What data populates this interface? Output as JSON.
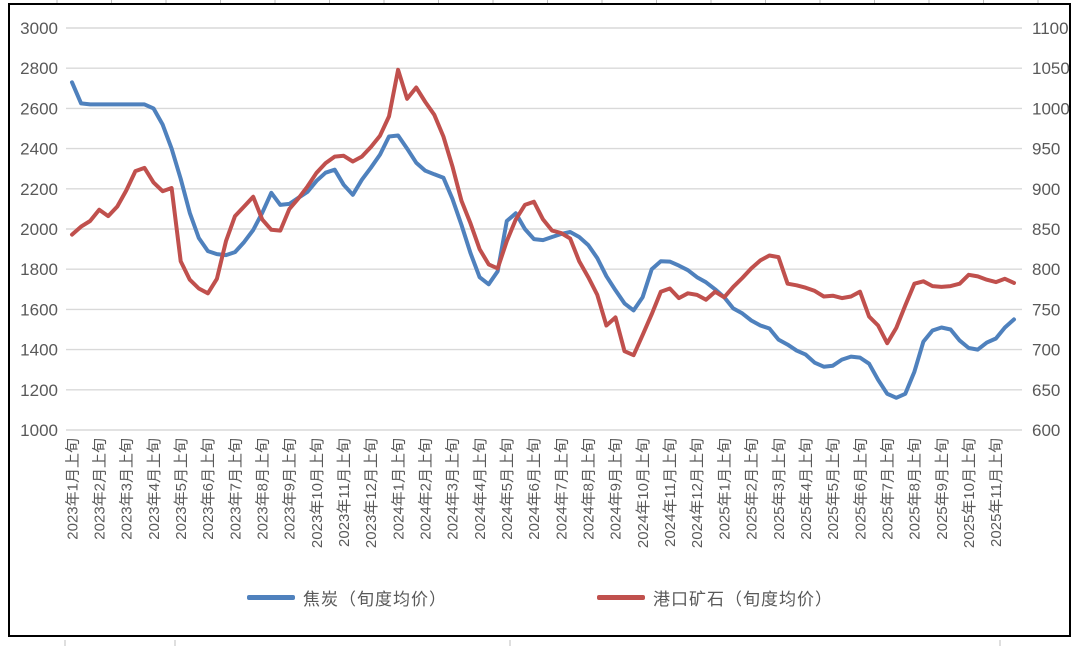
{
  "chart_data": {
    "type": "line",
    "title": "",
    "grid": "horizontal",
    "legend_position": "bottom",
    "points_per_month": 3,
    "x_tick_labels": [
      "2023年1月上旬",
      "2023年2月上旬",
      "2023年3月上旬",
      "2023年4月上旬",
      "2023年5月上旬",
      "2023年6月上旬",
      "2023年7月上旬",
      "2023年8月上旬",
      "2023年9月上旬",
      "2023年10月上旬",
      "2023年11月上旬",
      "2023年12月上旬",
      "2024年1月上旬",
      "2024年2月上旬",
      "2024年3月上旬",
      "2024年4月上旬",
      "2024年5月上旬",
      "2024年6月上旬",
      "2024年7月上旬",
      "2024年8月上旬",
      "2024年9月上旬",
      "2024年10月上旬",
      "2024年11月上旬",
      "2024年12月上旬",
      "2025年1月上旬",
      "2025年2月上旬",
      "2025年3月上旬",
      "2025年4月上旬",
      "2025年5月上旬",
      "2025年6月上旬",
      "2025年7月上旬",
      "2025年8月上旬",
      "2025年9月上旬",
      "2025年10月上旬",
      "2025年11月上旬"
    ],
    "left_axis": {
      "min": 1000,
      "max": 3000,
      "step": 200,
      "ticks": [
        3000,
        2800,
        2600,
        2400,
        2200,
        2000,
        1800,
        1600,
        1400,
        1200,
        1000
      ]
    },
    "right_axis": {
      "min": 600,
      "max": 1100,
      "step": 50,
      "ticks": [
        1100,
        1050,
        1000,
        950,
        900,
        850,
        800,
        750,
        700,
        650,
        600
      ]
    },
    "series": [
      {
        "name": "焦炭（旬度均价）",
        "axis": "left",
        "color": "#4F81BD",
        "values": [
          2730,
          2625,
          2620,
          2620,
          2620,
          2620,
          2620,
          2620,
          2620,
          2600,
          2520,
          2400,
          2250,
          2080,
          1955,
          1890,
          1875,
          1870,
          1885,
          1935,
          1995,
          2080,
          2180,
          2120,
          2125,
          2155,
          2185,
          2240,
          2280,
          2295,
          2220,
          2170,
          2245,
          2305,
          2370,
          2460,
          2465,
          2400,
          2330,
          2290,
          2272,
          2255,
          2150,
          2020,
          1880,
          1760,
          1725,
          1790,
          2040,
          2078,
          2000,
          1950,
          1945,
          1960,
          1975,
          1985,
          1960,
          1920,
          1855,
          1765,
          1695,
          1630,
          1595,
          1660,
          1800,
          1840,
          1838,
          1818,
          1795,
          1760,
          1735,
          1700,
          1660,
          1605,
          1580,
          1545,
          1520,
          1505,
          1450,
          1425,
          1395,
          1375,
          1335,
          1315,
          1320,
          1350,
          1365,
          1360,
          1330,
          1250,
          1180,
          1160,
          1180,
          1290,
          1440,
          1495,
          1510,
          1500,
          1445,
          1408,
          1400,
          1435,
          1455,
          1510,
          1550
        ]
      },
      {
        "name": "港口矿石（旬度均价）",
        "axis": "right",
        "color": "#C0504D",
        "values": [
          843,
          853,
          860,
          874,
          866,
          878,
          898,
          922,
          926,
          908,
          897,
          901,
          810,
          787,
          776,
          770,
          788,
          835,
          866,
          878,
          890,
          862,
          849,
          848,
          875,
          888,
          903,
          920,
          932,
          940,
          941,
          934,
          940,
          952,
          966,
          990,
          1048,
          1012,
          1026,
          1008,
          992,
          965,
          928,
          885,
          857,
          825,
          806,
          801,
          835,
          862,
          880,
          884,
          862,
          848,
          845,
          838,
          810,
          790,
          768,
          730,
          740,
          698,
          693,
          718,
          744,
          772,
          776,
          764,
          770,
          768,
          762,
          772,
          765,
          778,
          789,
          801,
          811,
          817,
          815,
          782,
          780,
          777,
          773,
          766,
          767,
          764,
          766,
          772,
          741,
          730,
          708,
          727,
          755,
          782,
          785,
          779,
          778,
          779,
          782,
          793,
          791,
          787,
          784,
          788,
          783
        ]
      }
    ]
  },
  "legend": {
    "series1": "焦炭（旬度均价）",
    "series2": "港口矿石（旬度均价）"
  },
  "colors": {
    "series1": "#4F81BD",
    "series2": "#C0504D",
    "gridline": "#D9D9D9",
    "axis_text": "#595959",
    "border": "#000000"
  }
}
